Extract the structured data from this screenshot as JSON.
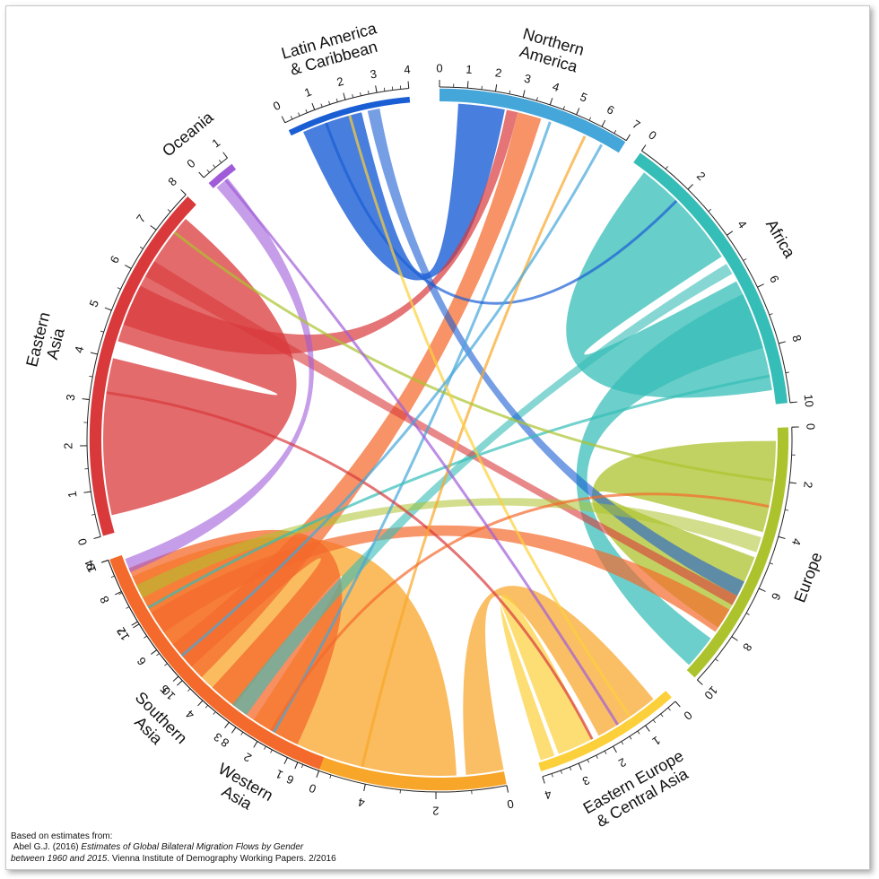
{
  "chart_data": {
    "type": "chord",
    "regions": [
      {
        "name": "Latin America\n& Caribbean",
        "color": "#1A5ED4",
        "ticks": [
          0,
          1,
          2,
          3,
          4
        ]
      },
      {
        "name": "Northern\nAmerica",
        "color": "#45A6DA",
        "ticks": [
          0,
          1,
          2,
          3,
          4,
          5,
          6,
          7
        ]
      },
      {
        "name": "Africa",
        "color": "#35BDB7",
        "ticks": [
          0,
          2,
          4,
          6,
          8,
          10
        ]
      },
      {
        "name": "Europe",
        "color": "#ADC32D",
        "ticks": [
          0,
          2,
          4,
          6,
          8,
          10
        ]
      },
      {
        "name": "Eastern Europe\n& Central Asia",
        "color": "#FCD03A",
        "ticks": [
          0,
          1,
          2,
          3,
          4
        ]
      },
      {
        "name": "Western\nAsia",
        "color": "#F8A62A",
        "ticks": [
          0,
          2,
          4,
          6,
          8,
          10,
          12,
          14
        ]
      },
      {
        "name": "Southern\nAsia",
        "color": "#F4692C",
        "ticks": [
          0,
          1,
          2,
          3,
          4,
          5,
          6,
          7,
          8,
          9
        ]
      },
      {
        "name": "Eastern\nAsia",
        "color": "#D9393B",
        "ticks": [
          0,
          1,
          2,
          3,
          4,
          5,
          6,
          7,
          8
        ]
      },
      {
        "name": "Oceania",
        "color": "#A05CD8",
        "ticks": [
          0,
          1
        ]
      }
    ]
  },
  "source": {
    "line1": "Based on estimates from:",
    "author": "Abel G.J. (2016) ",
    "title_a": "Estimates of Global Bilateral Migration Flows by Gender",
    "title_b": "between 1960 and 2015",
    "rest": ". Vienna Institute of Demography Working Papers. 2/2016"
  }
}
